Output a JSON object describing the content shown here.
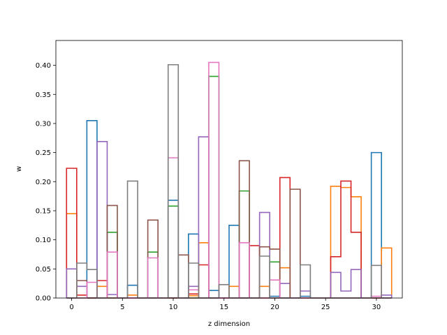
{
  "chart_data": {
    "type": "step",
    "xlabel": "z dimension",
    "ylabel": "w",
    "xlim": [
      -1.55,
      32.55
    ],
    "ylim": [
      0,
      0.4427
    ],
    "xticks": [
      0,
      5,
      10,
      15,
      20,
      25,
      30
    ],
    "yticks": [
      0.0,
      0.05,
      0.1,
      0.15,
      0.2,
      0.25,
      0.3,
      0.35,
      0.4
    ],
    "ytick_labels": [
      "0.00",
      "0.05",
      "0.10",
      "0.15",
      "0.20",
      "0.25",
      "0.30",
      "0.35",
      "0.40"
    ],
    "grid": false,
    "x": [
      0,
      1,
      2,
      3,
      4,
      5,
      6,
      7,
      8,
      9,
      10,
      11,
      12,
      13,
      14,
      15,
      16,
      17,
      18,
      19,
      20,
      21,
      22,
      23,
      24,
      25,
      26,
      27,
      28,
      29,
      30,
      31
    ],
    "series": [
      {
        "color": "#1f77b4",
        "values": [
          0,
          0,
          0.305,
          0,
          0,
          0,
          0.022,
          0,
          0,
          0,
          0.168,
          0,
          0.11,
          0,
          0.013,
          0,
          0.125,
          0,
          0,
          0,
          0.003,
          0,
          0,
          0.003,
          0,
          0,
          0,
          0,
          0,
          0,
          0.25,
          0
        ]
      },
      {
        "color": "#ff7f0e",
        "values": [
          0.145,
          0,
          0,
          0.02,
          0,
          0,
          0.005,
          0,
          0,
          0,
          0,
          0,
          0.004,
          0.095,
          0,
          0,
          0.02,
          0,
          0,
          0.02,
          0,
          0.052,
          0,
          0,
          0,
          0,
          0.192,
          0.19,
          0.174,
          0,
          0,
          0.086
        ]
      },
      {
        "color": "#2ca02c",
        "values": [
          0,
          0,
          0,
          0,
          0.113,
          0,
          0,
          0,
          0.079,
          0,
          0.158,
          0,
          0,
          0,
          0.381,
          0,
          0,
          0.184,
          0,
          0,
          0.062,
          0,
          0,
          0,
          0,
          0,
          0,
          0,
          0,
          0,
          0,
          0
        ]
      },
      {
        "color": "#d62728",
        "values": [
          0.223,
          0.005,
          0,
          0.03,
          0,
          0,
          0,
          0,
          0,
          0,
          0,
          0,
          0.007,
          0.057,
          0,
          0,
          0,
          0,
          0.09,
          0,
          0,
          0.207,
          0,
          0,
          0,
          0,
          0.071,
          0.201,
          0.113,
          0,
          0,
          0
        ]
      },
      {
        "color": "#9467bd",
        "values": [
          0.05,
          0.02,
          0,
          0.269,
          0.006,
          0,
          0,
          0,
          0,
          0,
          0,
          0,
          0.02,
          0.277,
          0,
          0,
          0,
          0,
          0,
          0.147,
          0,
          0.025,
          0,
          0.012,
          0,
          0,
          0.044,
          0.012,
          0.049,
          0,
          0,
          0.005
        ]
      },
      {
        "color": "#8c564b",
        "values": [
          0,
          0.03,
          0,
          0,
          0.159,
          0,
          0,
          0,
          0.134,
          0,
          0,
          0.074,
          0,
          0,
          0,
          0,
          0,
          0.236,
          0,
          0.088,
          0.084,
          0,
          0.187,
          0,
          0,
          0,
          0,
          0,
          0,
          0,
          0,
          0
        ]
      },
      {
        "color": "#e377c2",
        "values": [
          0,
          0,
          0.027,
          0,
          0.079,
          0,
          0,
          0,
          0.069,
          0,
          0.241,
          0,
          0.014,
          0,
          0.405,
          0,
          0,
          0.095,
          0,
          0,
          0.031,
          0,
          0,
          0,
          0,
          0,
          0,
          0,
          0,
          0,
          0.003,
          0
        ]
      },
      {
        "color": "#7f7f7f",
        "values": [
          0,
          0.06,
          0.049,
          0,
          0,
          0,
          0.201,
          0,
          0,
          0,
          0.401,
          0,
          0.06,
          0,
          0,
          0.023,
          0,
          0,
          0,
          0.072,
          0,
          0,
          0,
          0.057,
          0,
          0,
          0,
          0,
          0,
          0,
          0.056,
          0
        ]
      }
    ]
  }
}
